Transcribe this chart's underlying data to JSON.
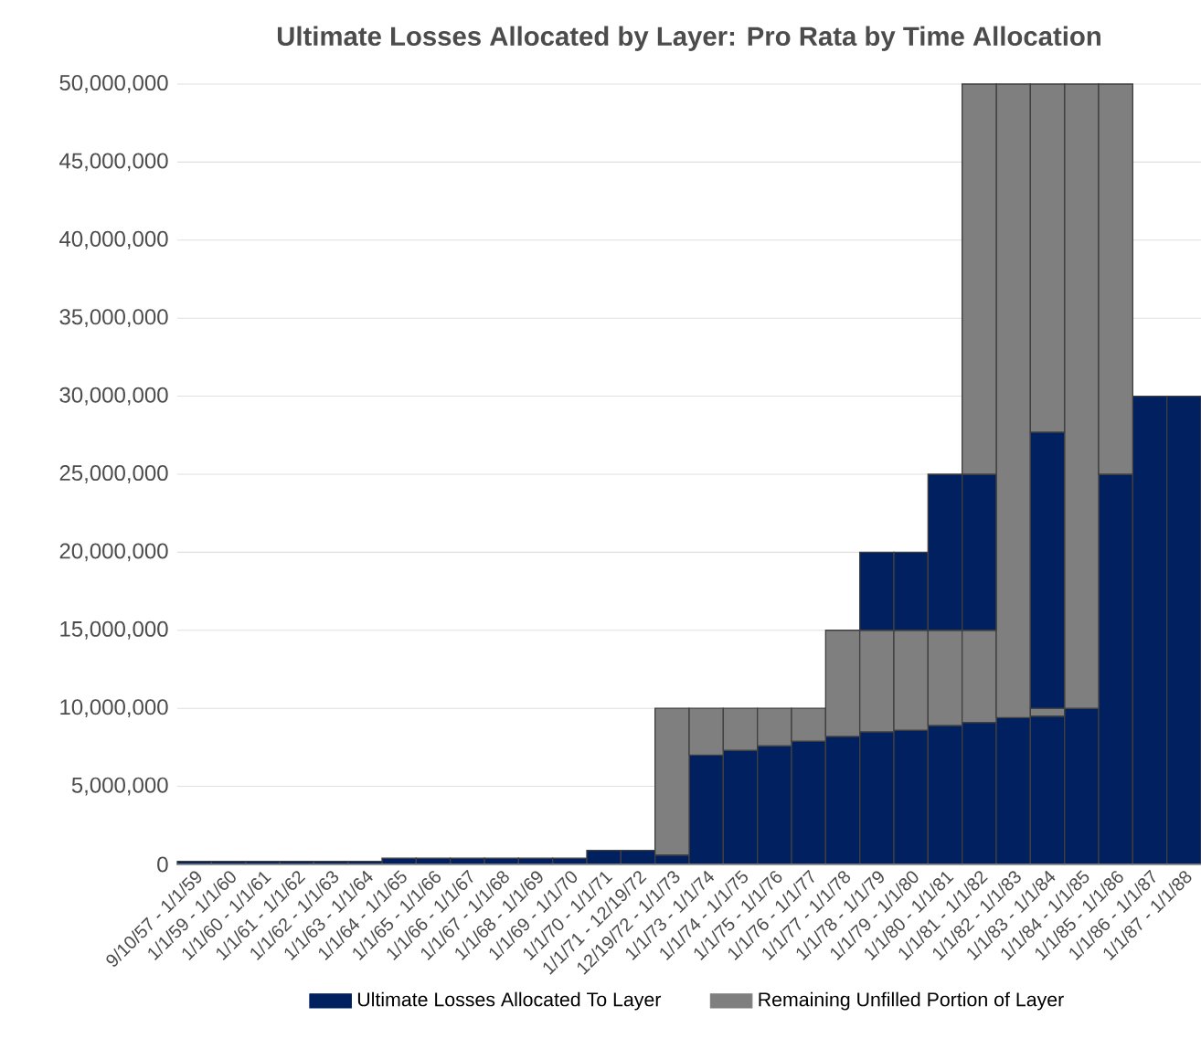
{
  "chart_data": {
    "type": "bar",
    "stacked": true,
    "title": "Ultimate Losses Allocated by Layer: Pro Rata by Time Allocation",
    "categories": [
      "9/10/57 - 1/1/59",
      "1/1/59 - 1/1/60",
      "1/1/60 - 1/1/61",
      "1/1/61 - 1/1/62",
      "1/1/62 - 1/1/63",
      "1/1/63 - 1/1/64",
      "1/1/64 - 1/1/65",
      "1/1/65 - 1/1/66",
      "1/1/66 - 1/1/67",
      "1/1/67 - 1/1/68",
      "1/1/68 - 1/1/69",
      "1/1/69 - 1/1/70",
      "1/1/70 - 1/1/71",
      "1/1/71 - 12/19/72",
      "12/19/72 - 1/1/73",
      "1/1/73 - 1/1/74",
      "1/1/74 - 1/1/75",
      "1/1/75 - 1/1/76",
      "1/1/76 - 1/1/77",
      "1/1/77 - 1/1/78",
      "1/1/78 - 1/1/79",
      "1/1/79 - 1/1/80",
      "1/1/80 - 1/1/81",
      "1/1/81 - 1/1/82",
      "1/1/82 - 1/1/83",
      "1/1/83 - 1/1/84",
      "1/1/84 - 1/1/85",
      "1/1/85 - 1/1/86",
      "1/1/86 - 1/1/87",
      "1/1/87 - 1/1/88"
    ],
    "series": [
      {
        "name": "Ultimate Losses Allocated To Layer",
        "color": "#002060",
        "values": [
          200000,
          200000,
          200000,
          200000,
          200000,
          200000,
          400000,
          400000,
          400000,
          400000,
          400000,
          400000,
          900000,
          900000,
          600000,
          7000000,
          7300000,
          7600000,
          7900000,
          8200000,
          8500000,
          8600000,
          8900000,
          9100000,
          9400000,
          9500000,
          10000000,
          25000000,
          30000000,
          30000000
        ]
      },
      {
        "name": "Remaining Unfilled Portion of Layer",
        "color": "#7f7f7f",
        "values": [
          null,
          null,
          null,
          null,
          null,
          null,
          null,
          null,
          null,
          null,
          null,
          null,
          null,
          null,
          9400000,
          3000000,
          2700000,
          2400000,
          2100000,
          6800000,
          6500000,
          6400000,
          6100000,
          5900000,
          40600000,
          500000,
          40000000,
          25000000,
          null,
          null
        ]
      },
      {
        "color": "#002060",
        "values": [
          null,
          null,
          null,
          null,
          null,
          null,
          null,
          null,
          null,
          null,
          null,
          null,
          null,
          null,
          null,
          null,
          null,
          null,
          null,
          null,
          5000000,
          5000000,
          10000000,
          10000000,
          null,
          17700000,
          null,
          null,
          null,
          null
        ]
      },
      {
        "color": "#7f7f7f",
        "values": [
          null,
          null,
          null,
          null,
          null,
          null,
          null,
          null,
          null,
          null,
          null,
          null,
          null,
          null,
          null,
          null,
          null,
          null,
          null,
          null,
          null,
          null,
          null,
          25000000,
          null,
          22300000,
          null,
          null,
          null,
          null
        ]
      }
    ],
    "ylim": [
      0,
      50000000
    ],
    "yticks": [
      {
        "value": 0,
        "label": "0"
      },
      {
        "value": 5000000,
        "label": "5,000,000"
      },
      {
        "value": 10000000,
        "label": "10,000,000"
      },
      {
        "value": 15000000,
        "label": "15,000,000"
      },
      {
        "value": 20000000,
        "label": "20,000,000"
      },
      {
        "value": 25000000,
        "label": "25,000,000"
      },
      {
        "value": 30000000,
        "label": "30,000,000"
      },
      {
        "value": 35000000,
        "label": "35,000,000"
      },
      {
        "value": 40000000,
        "label": "40,000,000"
      },
      {
        "value": 45000000,
        "label": "45,000,000"
      },
      {
        "value": 50000000,
        "label": "50,000,000"
      }
    ],
    "grid": "y",
    "legend": "bottom"
  }
}
